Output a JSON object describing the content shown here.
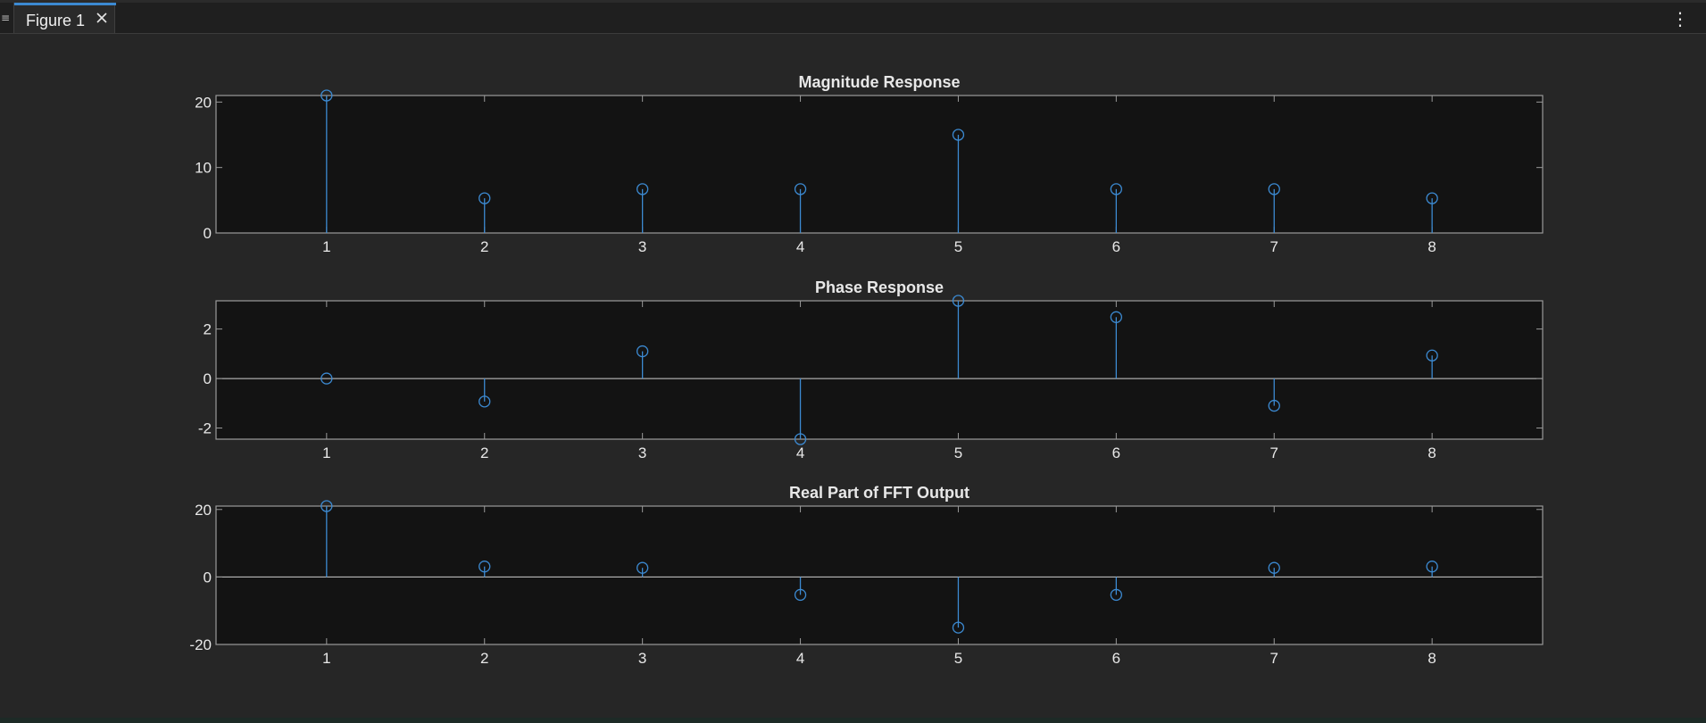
{
  "window": {
    "tab_label": "Figure 1",
    "grip_icon": "panel-grip-icon",
    "close_icon": "close-icon",
    "menu_icon": "more-options-icon"
  },
  "colors": {
    "background": "#262626",
    "axes_background": "#131313",
    "axes_border": "#9a9a9a",
    "text": "#e8e8e8",
    "stem": "#3c8ad2",
    "tab_accent": "#3c8ad2"
  },
  "chart_data": [
    {
      "type": "stem",
      "title": "Magnitude Response",
      "xlabel": "",
      "ylabel": "",
      "x": [
        1,
        2,
        3,
        4,
        5,
        6,
        7,
        8
      ],
      "values": [
        21,
        5.3,
        6.7,
        6.7,
        15,
        6.7,
        6.7,
        5.3
      ],
      "xlim": [
        0.3,
        8.7
      ],
      "ylim": [
        0,
        21
      ],
      "xticks": [
        "1",
        "2",
        "3",
        "4",
        "5",
        "6",
        "7",
        "8"
      ],
      "yticks": [
        0,
        10,
        20
      ],
      "ytick_labels": [
        "0",
        "10",
        "20"
      ],
      "grid": false
    },
    {
      "type": "stem",
      "title": "Phase Response",
      "xlabel": "",
      "ylabel": "",
      "x": [
        1,
        2,
        3,
        4,
        5,
        6,
        7,
        8
      ],
      "values": [
        0,
        -0.93,
        1.1,
        -2.45,
        3.14,
        2.48,
        -1.1,
        0.93
      ],
      "xlim": [
        0.3,
        8.7
      ],
      "ylim": [
        -2.45,
        3.14
      ],
      "xticks": [
        "1",
        "2",
        "3",
        "4",
        "5",
        "6",
        "7",
        "8"
      ],
      "yticks": [
        -2,
        0,
        2
      ],
      "ytick_labels": [
        "-2",
        "0",
        "2"
      ],
      "grid": false
    },
    {
      "type": "stem",
      "title": "Real Part of FFT Output",
      "xlabel": "",
      "ylabel": "",
      "x": [
        1,
        2,
        3,
        4,
        5,
        6,
        7,
        8
      ],
      "values": [
        21,
        3.1,
        2.7,
        -5.3,
        -15,
        -5.3,
        2.7,
        3.1
      ],
      "xlim": [
        0.3,
        8.7
      ],
      "ylim": [
        -20,
        21
      ],
      "xticks": [
        "1",
        "2",
        "3",
        "4",
        "5",
        "6",
        "7",
        "8"
      ],
      "yticks": [
        -20,
        0,
        20
      ],
      "ytick_labels": [
        "-20",
        "0",
        "20"
      ],
      "grid": false
    }
  ]
}
